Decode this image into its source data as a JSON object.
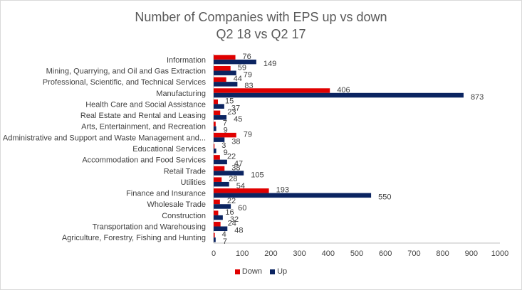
{
  "chart_data": {
    "type": "bar",
    "orientation": "horizontal",
    "title": "Number of Companies with EPS up vs down",
    "subtitle": "Q2 18 vs Q2 17",
    "categories": [
      "Information",
      "Mining, Quarrying, and Oil and Gas Extraction",
      "Professional, Scientific, and Technical Services",
      "Manufacturing",
      "Health Care and Social Assistance",
      "Real Estate and Rental and Leasing",
      "Arts, Entertainment, and Recreation",
      "Administrative and Support and Waste Management and...",
      "Educational Services",
      "Accommodation and Food Services",
      "Retail Trade",
      "Utilities",
      "Finance and Insurance",
      "Wholesale Trade",
      "Construction",
      "Transportation and Warehousing",
      "Agriculture, Forestry, Fishing and Hunting"
    ],
    "series": [
      {
        "name": "Down",
        "color": "#e00000",
        "values": [
          76,
          59,
          44,
          406,
          15,
          23,
          7,
          79,
          3,
          22,
          38,
          28,
          193,
          22,
          16,
          24,
          4
        ]
      },
      {
        "name": "Up",
        "color": "#0b2461",
        "values": [
          149,
          79,
          83,
          873,
          37,
          45,
          9,
          38,
          9,
          47,
          105,
          54,
          550,
          60,
          32,
          48,
          7
        ]
      }
    ],
    "xlim": [
      0,
      1000
    ],
    "xticks": [
      "0",
      "100",
      "200",
      "300",
      "400",
      "500",
      "600",
      "700",
      "800",
      "900",
      "1000"
    ],
    "grid": false,
    "legend_position": "bottom"
  }
}
